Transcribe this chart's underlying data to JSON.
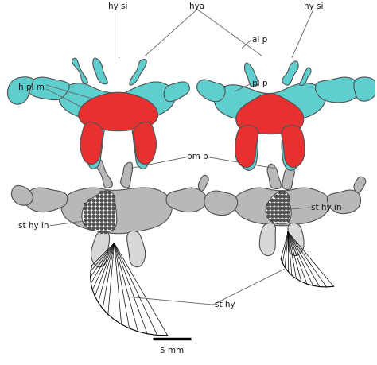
{
  "bg_color": "#ffffff",
  "labels": {
    "hy_si_left": "hy si",
    "hy_si_right": "hy si",
    "hya": "hya",
    "al_p": "al p",
    "h_pl_m": "h pl m",
    "pl_p": "pl p",
    "pm_p": "pm p",
    "st_hy_in_left": "st hy in",
    "st_hy_in_right": "st hy in",
    "st_hy": "st hy",
    "scale": "5 mm"
  },
  "cyan_color": "#5ecece",
  "red_color": "#e83030",
  "gray_color": "#b8b8b8",
  "gray_outline": "#606060",
  "dark_gray": "#505050",
  "black": "#000000",
  "light_gray": "#d8d8d8",
  "line_color": "#707070"
}
